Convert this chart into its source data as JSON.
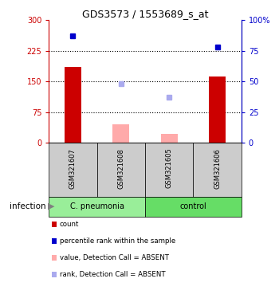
{
  "title": "GDS3573 / 1553689_s_at",
  "samples": [
    "GSM321607",
    "GSM321608",
    "GSM321605",
    "GSM321606"
  ],
  "groups": [
    "C. pneumonia",
    "C. pneumonia",
    "control",
    "control"
  ],
  "x_positions": [
    0,
    1,
    2,
    3
  ],
  "count_values": [
    185,
    null,
    null,
    162
  ],
  "count_color": "#cc0000",
  "absent_value_bars": [
    null,
    45,
    22,
    null
  ],
  "absent_value_color": "#ffaaaa",
  "percentile_rank": [
    87,
    null,
    null,
    78
  ],
  "percentile_rank_color": "#0000cc",
  "absent_rank": [
    null,
    48,
    37,
    null
  ],
  "absent_rank_color": "#aaaaee",
  "ylim_left": [
    0,
    300
  ],
  "ylim_right": [
    0,
    100
  ],
  "yticks_left": [
    0,
    75,
    150,
    225,
    300
  ],
  "ytick_labels_left": [
    "0",
    "75",
    "150",
    "225",
    "300"
  ],
  "yticks_right": [
    0,
    25,
    50,
    75,
    100
  ],
  "ytick_labels_right": [
    "0",
    "25",
    "50",
    "75",
    "100%"
  ],
  "hlines": [
    75,
    150,
    225
  ],
  "group_label_text": "infection",
  "bar_width": 0.35,
  "sample_area_color": "#cccccc",
  "group_colors": {
    "C. pneumonia": "#99ee99",
    "control": "#66dd66"
  },
  "legend_items": [
    {
      "color": "#cc0000",
      "label": "count",
      "marker": "s"
    },
    {
      "color": "#0000cc",
      "label": "percentile rank within the sample",
      "marker": "s"
    },
    {
      "color": "#ffaaaa",
      "label": "value, Detection Call = ABSENT",
      "marker": "s"
    },
    {
      "color": "#aaaaee",
      "label": "rank, Detection Call = ABSENT",
      "marker": "s"
    }
  ]
}
